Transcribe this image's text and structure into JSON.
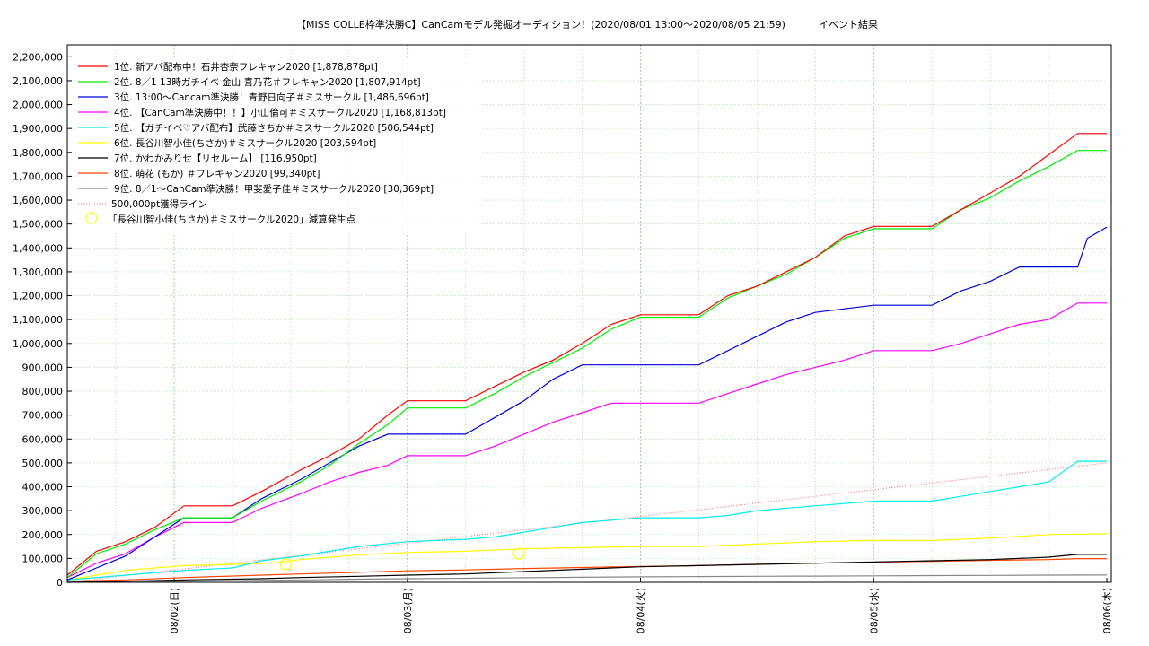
{
  "chart_data": {
    "type": "line",
    "title": "【MISS COLLE枠準決勝C】CanCamモデル発掘オーディション！(2020/08/01 13:00～2020/08/05 21:59)",
    "subtitle": "イベント結果",
    "x_range_hours": [
      0,
      107
    ],
    "ylim": [
      0,
      2250000
    ],
    "x_ticks": [
      {
        "label": "08/02(日)",
        "hour": 11
      },
      {
        "label": "08/03(月)",
        "hour": 35
      },
      {
        "label": "08/04(火)",
        "hour": 59
      },
      {
        "label": "08/05(水)",
        "hour": 83
      },
      {
        "label": "08/06(木)",
        "hour": 107
      }
    ],
    "y_ticks": [
      {
        "label": "0",
        "value": 0
      },
      {
        "label": "100,000",
        "value": 100000
      },
      {
        "label": "200,000",
        "value": 200000
      },
      {
        "label": "300,000",
        "value": 300000
      },
      {
        "label": "400,000",
        "value": 400000
      },
      {
        "label": "500,000",
        "value": 500000
      },
      {
        "label": "600,000",
        "value": 600000
      },
      {
        "label": "700,000",
        "value": 700000
      },
      {
        "label": "800,000",
        "value": 800000
      },
      {
        "label": "900,000",
        "value": 900000
      },
      {
        "label": "1,000,000",
        "value": 1000000
      },
      {
        "label": "1,100,000",
        "value": 1100000
      },
      {
        "label": "1,200,000",
        "value": 1200000
      },
      {
        "label": "1,300,000",
        "value": 1300000
      },
      {
        "label": "1,400,000",
        "value": 1400000
      },
      {
        "label": "1,500,000",
        "value": 1500000
      },
      {
        "label": "1,600,000",
        "value": 1600000
      },
      {
        "label": "1,700,000",
        "value": 1700000
      },
      {
        "label": "1,800,000",
        "value": 1800000
      },
      {
        "label": "1,900,000",
        "value": 1900000
      },
      {
        "label": "2,000,000",
        "value": 2000000
      },
      {
        "label": "2,100,000",
        "value": 2100000
      },
      {
        "label": "2,200,000",
        "value": 2200000
      }
    ],
    "grid": true,
    "legend_position": "top-left",
    "series": [
      {
        "name": "1位. 新アバ配布中！石井杏奈フレキャン2020 [1,878,878pt]",
        "color": "#ff0000",
        "points": [
          [
            0,
            30000
          ],
          [
            3,
            130000
          ],
          [
            6,
            170000
          ],
          [
            9,
            230000
          ],
          [
            12,
            320000
          ],
          [
            17,
            320000
          ],
          [
            20,
            380000
          ],
          [
            24,
            470000
          ],
          [
            27,
            530000
          ],
          [
            30,
            600000
          ],
          [
            33,
            700000
          ],
          [
            35,
            760000
          ],
          [
            41,
            760000
          ],
          [
            44,
            820000
          ],
          [
            47,
            880000
          ],
          [
            50,
            930000
          ],
          [
            53,
            1000000
          ],
          [
            56,
            1080000
          ],
          [
            59,
            1120000
          ],
          [
            65,
            1120000
          ],
          [
            68,
            1200000
          ],
          [
            71,
            1240000
          ],
          [
            74,
            1300000
          ],
          [
            77,
            1360000
          ],
          [
            80,
            1450000
          ],
          [
            83,
            1490000
          ],
          [
            89,
            1490000
          ],
          [
            92,
            1560000
          ],
          [
            95,
            1630000
          ],
          [
            98,
            1700000
          ],
          [
            101,
            1790000
          ],
          [
            104,
            1878878
          ],
          [
            107,
            1878878
          ]
        ]
      },
      {
        "name": "2位. 8／1 13時ガチイベ 金山 喜乃花＃フレキャン2020 [1,807,914pt]",
        "color": "#00ee00",
        "points": [
          [
            0,
            20000
          ],
          [
            3,
            120000
          ],
          [
            6,
            160000
          ],
          [
            9,
            220000
          ],
          [
            12,
            270000
          ],
          [
            17,
            270000
          ],
          [
            20,
            340000
          ],
          [
            24,
            420000
          ],
          [
            27,
            490000
          ],
          [
            30,
            580000
          ],
          [
            33,
            660000
          ],
          [
            35,
            730000
          ],
          [
            41,
            730000
          ],
          [
            44,
            790000
          ],
          [
            47,
            860000
          ],
          [
            50,
            920000
          ],
          [
            53,
            980000
          ],
          [
            56,
            1060000
          ],
          [
            59,
            1110000
          ],
          [
            65,
            1110000
          ],
          [
            68,
            1190000
          ],
          [
            71,
            1240000
          ],
          [
            74,
            1290000
          ],
          [
            77,
            1360000
          ],
          [
            80,
            1440000
          ],
          [
            83,
            1480000
          ],
          [
            89,
            1480000
          ],
          [
            92,
            1560000
          ],
          [
            95,
            1610000
          ],
          [
            98,
            1680000
          ],
          [
            101,
            1740000
          ],
          [
            104,
            1807914
          ],
          [
            107,
            1807914
          ]
        ]
      },
      {
        "name": "3位. 13:00～Cancam準決勝！青野日向子＃ミスサークル [1,486,696pt]",
        "color": "#0000dd",
        "points": [
          [
            0,
            10000
          ],
          [
            3,
            60000
          ],
          [
            6,
            110000
          ],
          [
            9,
            190000
          ],
          [
            12,
            270000
          ],
          [
            17,
            270000
          ],
          [
            20,
            350000
          ],
          [
            24,
            430000
          ],
          [
            27,
            500000
          ],
          [
            30,
            570000
          ],
          [
            33,
            620000
          ],
          [
            41,
            620000
          ],
          [
            44,
            690000
          ],
          [
            47,
            760000
          ],
          [
            50,
            850000
          ],
          [
            53,
            910000
          ],
          [
            59,
            910000
          ],
          [
            65,
            910000
          ],
          [
            68,
            970000
          ],
          [
            71,
            1030000
          ],
          [
            74,
            1090000
          ],
          [
            77,
            1130000
          ],
          [
            83,
            1160000
          ],
          [
            89,
            1160000
          ],
          [
            92,
            1220000
          ],
          [
            95,
            1260000
          ],
          [
            98,
            1320000
          ],
          [
            104,
            1320000
          ],
          [
            105,
            1440000
          ],
          [
            107,
            1486696
          ]
        ]
      },
      {
        "name": "4位. 【CanCam準決勝中！！】小山倫可＃ミスサークル2020 [1,168,813pt]",
        "color": "#ff00ff",
        "points": [
          [
            0,
            20000
          ],
          [
            3,
            80000
          ],
          [
            6,
            120000
          ],
          [
            9,
            190000
          ],
          [
            12,
            250000
          ],
          [
            17,
            250000
          ],
          [
            20,
            310000
          ],
          [
            24,
            370000
          ],
          [
            27,
            420000
          ],
          [
            30,
            460000
          ],
          [
            33,
            490000
          ],
          [
            35,
            530000
          ],
          [
            41,
            530000
          ],
          [
            44,
            570000
          ],
          [
            47,
            620000
          ],
          [
            50,
            670000
          ],
          [
            53,
            710000
          ],
          [
            56,
            750000
          ],
          [
            65,
            750000
          ],
          [
            68,
            790000
          ],
          [
            71,
            830000
          ],
          [
            74,
            870000
          ],
          [
            77,
            900000
          ],
          [
            80,
            930000
          ],
          [
            83,
            970000
          ],
          [
            89,
            970000
          ],
          [
            92,
            1000000
          ],
          [
            95,
            1040000
          ],
          [
            98,
            1080000
          ],
          [
            101,
            1100000
          ],
          [
            104,
            1168813
          ],
          [
            107,
            1168813
          ]
        ]
      },
      {
        "name": "5位. 【ガチイベ♡アバ配布】武藤さちか＃ミスサークル2020 [506,544pt]",
        "color": "#00eeee",
        "points": [
          [
            0,
            10000
          ],
          [
            6,
            30000
          ],
          [
            12,
            50000
          ],
          [
            17,
            60000
          ],
          [
            20,
            90000
          ],
          [
            24,
            110000
          ],
          [
            27,
            130000
          ],
          [
            30,
            150000
          ],
          [
            35,
            170000
          ],
          [
            41,
            180000
          ],
          [
            44,
            190000
          ],
          [
            47,
            210000
          ],
          [
            50,
            230000
          ],
          [
            53,
            250000
          ],
          [
            56,
            260000
          ],
          [
            59,
            270000
          ],
          [
            65,
            270000
          ],
          [
            68,
            280000
          ],
          [
            71,
            300000
          ],
          [
            74,
            310000
          ],
          [
            77,
            320000
          ],
          [
            80,
            330000
          ],
          [
            83,
            340000
          ],
          [
            89,
            340000
          ],
          [
            92,
            360000
          ],
          [
            95,
            380000
          ],
          [
            98,
            400000
          ],
          [
            101,
            420000
          ],
          [
            104,
            506544
          ],
          [
            107,
            506544
          ]
        ]
      },
      {
        "name": "6位. 長谷川智小佳(ちさか)＃ミスサークル2020 [203,594pt]",
        "color": "#ffff00",
        "points": [
          [
            0,
            10000
          ],
          [
            3,
            30000
          ],
          [
            6,
            50000
          ],
          [
            9,
            60000
          ],
          [
            12,
            70000
          ],
          [
            17,
            75000
          ],
          [
            21,
            80000
          ],
          [
            24,
            95000
          ],
          [
            27,
            105000
          ],
          [
            30,
            115000
          ],
          [
            35,
            125000
          ],
          [
            41,
            130000
          ],
          [
            47,
            140000
          ],
          [
            53,
            145000
          ],
          [
            59,
            150000
          ],
          [
            65,
            150000
          ],
          [
            71,
            160000
          ],
          [
            77,
            170000
          ],
          [
            83,
            175000
          ],
          [
            89,
            175000
          ],
          [
            95,
            185000
          ],
          [
            101,
            200000
          ],
          [
            107,
            203594
          ]
        ]
      },
      {
        "name": "7位. かわかみりせ【リセルーム】 [116,950pt]",
        "color": "#000000",
        "points": [
          [
            0,
            0
          ],
          [
            6,
            5000
          ],
          [
            12,
            10000
          ],
          [
            20,
            15000
          ],
          [
            24,
            20000
          ],
          [
            30,
            25000
          ],
          [
            35,
            30000
          ],
          [
            41,
            35000
          ],
          [
            47,
            45000
          ],
          [
            53,
            55000
          ],
          [
            59,
            65000
          ],
          [
            65,
            70000
          ],
          [
            71,
            75000
          ],
          [
            77,
            80000
          ],
          [
            83,
            85000
          ],
          [
            89,
            90000
          ],
          [
            95,
            95000
          ],
          [
            101,
            105000
          ],
          [
            104,
            116950
          ],
          [
            107,
            116950
          ]
        ]
      },
      {
        "name": "8位. 萌花 (もか) ＃フレキャン2020 [99,340pt]",
        "color": "#ff4400",
        "points": [
          [
            0,
            5000
          ],
          [
            6,
            10000
          ],
          [
            12,
            20000
          ],
          [
            20,
            30000
          ],
          [
            24,
            35000
          ],
          [
            30,
            42000
          ],
          [
            35,
            48000
          ],
          [
            41,
            52000
          ],
          [
            47,
            58000
          ],
          [
            53,
            62000
          ],
          [
            59,
            66000
          ],
          [
            65,
            70000
          ],
          [
            71,
            75000
          ],
          [
            77,
            80000
          ],
          [
            83,
            84000
          ],
          [
            89,
            88000
          ],
          [
            95,
            92000
          ],
          [
            101,
            95000
          ],
          [
            104,
            99340
          ],
          [
            107,
            99340
          ]
        ]
      },
      {
        "name": "9位. 8／1～CanCam準決勝！甲斐愛子佳＃ミスサークル2020 [30,369pt]",
        "color": "#888888",
        "points": [
          [
            0,
            0
          ],
          [
            6,
            2000
          ],
          [
            12,
            5000
          ],
          [
            20,
            8000
          ],
          [
            24,
            10000
          ],
          [
            30,
            13000
          ],
          [
            35,
            15000
          ],
          [
            41,
            17000
          ],
          [
            47,
            19000
          ],
          [
            53,
            21000
          ],
          [
            59,
            23000
          ],
          [
            65,
            24000
          ],
          [
            71,
            25000
          ],
          [
            77,
            26000
          ],
          [
            83,
            27000
          ],
          [
            89,
            28000
          ],
          [
            95,
            29000
          ],
          [
            101,
            30000
          ],
          [
            107,
            30369
          ]
        ]
      }
    ],
    "reference_line": {
      "name": "500,000pt獲得ライン",
      "color": "#ff6666",
      "from": [
        0,
        0
      ],
      "to": [
        107,
        500000
      ]
    },
    "markers": {
      "name": "「長谷川智小佳(ちさか)＃ミスサークル2020」減算発生点",
      "color": "#ffff00",
      "points": [
        [
          22.5,
          75000
        ],
        [
          46.5,
          120000
        ]
      ]
    }
  }
}
